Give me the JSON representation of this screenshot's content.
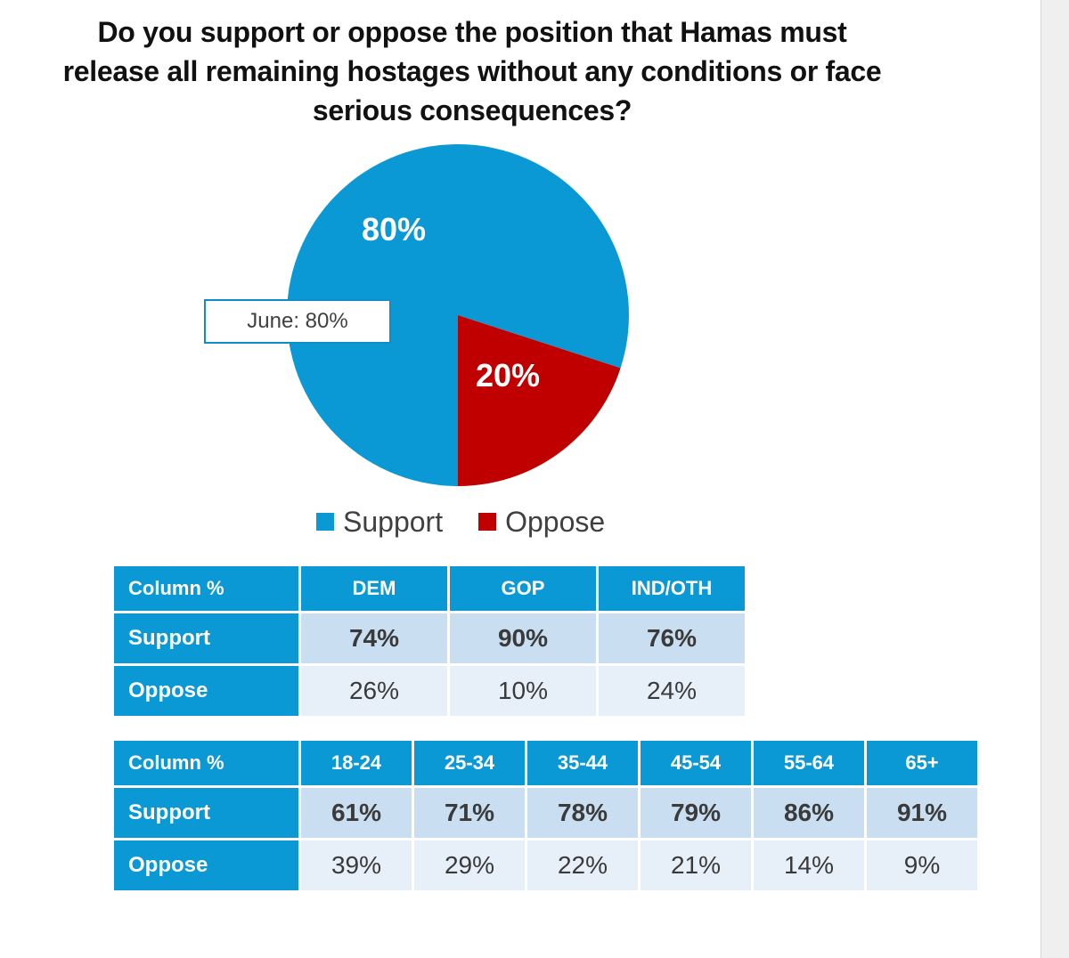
{
  "colors": {
    "support": "#0b99d6",
    "oppose": "#c00000",
    "header_bg": "#0b99d6",
    "support_cell": "#c9dff1",
    "oppose_cell": "#e7f0f9"
  },
  "chart_data": [
    {
      "type": "pie",
      "title": "Do you support or oppose the position that Hamas must release all remaining hostages without any conditions or face serious consequences?",
      "categories": [
        "Support",
        "Oppose"
      ],
      "values": [
        80,
        20
      ],
      "data_labels": [
        "80%",
        "20%"
      ],
      "colors": [
        "#0b99d6",
        "#c00000"
      ],
      "annotation": "June: 80%",
      "legend": {
        "position": "bottom",
        "entries": [
          "Support",
          "Oppose"
        ]
      }
    },
    {
      "type": "table",
      "corner": "Column %",
      "columns": [
        "DEM",
        "GOP",
        "IND/OTH"
      ],
      "rows": [
        {
          "label": "Support",
          "values": [
            "74%",
            "90%",
            "76%"
          ]
        },
        {
          "label": "Oppose",
          "values": [
            "26%",
            "10%",
            "24%"
          ]
        }
      ]
    },
    {
      "type": "table",
      "corner": "Column %",
      "columns": [
        "18-24",
        "25-34",
        "35-44",
        "45-54",
        "55-64",
        "65+"
      ],
      "rows": [
        {
          "label": "Support",
          "values": [
            "61%",
            "71%",
            "78%",
            "79%",
            "86%",
            "91%"
          ]
        },
        {
          "label": "Oppose",
          "values": [
            "39%",
            "29%",
            "22%",
            "21%",
            "14%",
            "9%"
          ]
        }
      ]
    }
  ]
}
